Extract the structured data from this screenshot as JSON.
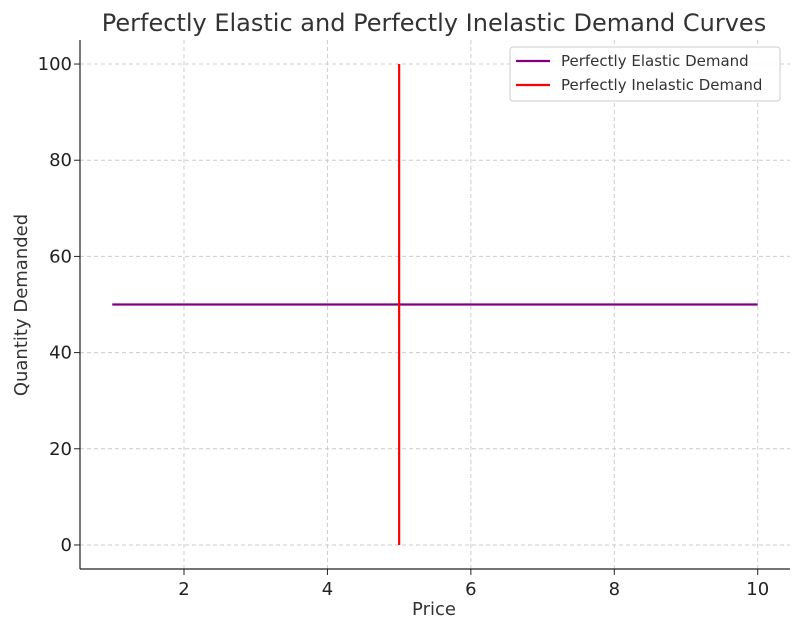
{
  "chart_data": {
    "type": "line",
    "title": "Perfectly Elastic and Perfectly Inelastic Demand Curves",
    "xlabel": "Price",
    "ylabel": "Quantity Demanded",
    "xlim": [
      0.55,
      10.45
    ],
    "ylim": [
      -5,
      105
    ],
    "xticks": [
      2,
      4,
      6,
      8,
      10
    ],
    "yticks": [
      0,
      20,
      40,
      60,
      80,
      100
    ],
    "grid": true,
    "legend_position": "top-right",
    "series": [
      {
        "name": "Perfectly Elastic Demand",
        "color": "#800080",
        "x": [
          1,
          10
        ],
        "y": [
          50,
          50
        ]
      },
      {
        "name": "Perfectly Inelastic Demand",
        "color": "#ff0000",
        "x": [
          5,
          5
        ],
        "y": [
          0,
          100
        ]
      }
    ]
  }
}
